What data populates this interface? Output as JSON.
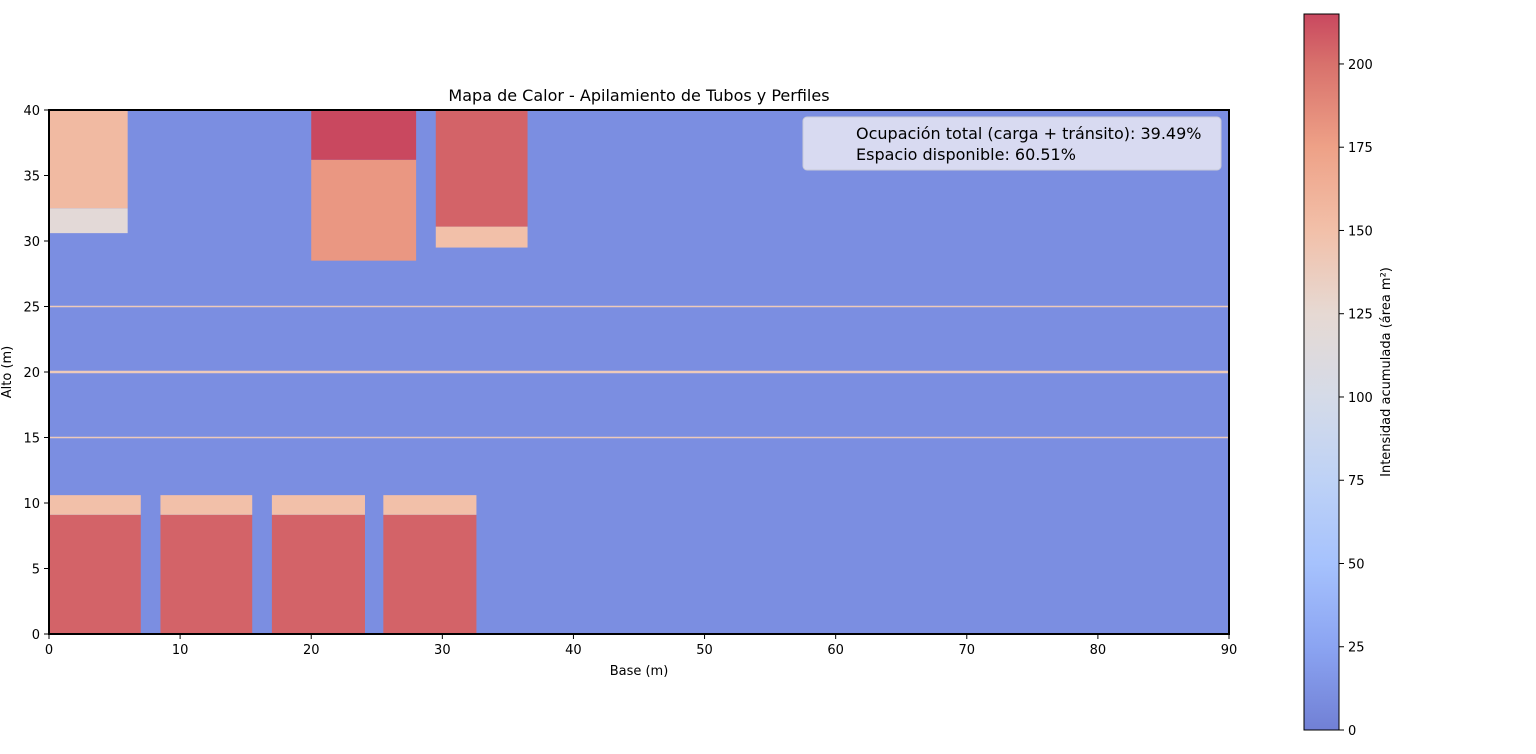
{
  "chart_data": {
    "type": "heatmap",
    "title": "Mapa de Calor - Apilamiento de Tubos y Perfiles",
    "xlabel": "Base (m)",
    "ylabel": "Alto (m)",
    "xlim": [
      0,
      90
    ],
    "ylim": [
      0,
      40
    ],
    "xticks": [
      0,
      10,
      20,
      30,
      40,
      50,
      60,
      70,
      80,
      90
    ],
    "yticks": [
      0,
      5,
      10,
      15,
      20,
      25,
      30,
      35,
      40
    ],
    "grid": false,
    "colormap": "coolwarm",
    "background_value": 10,
    "colorbar": {
      "label": "Intensidad acumulada (área m²)",
      "range": [
        0,
        215
      ],
      "ticks": [
        0,
        25,
        50,
        75,
        100,
        125,
        150,
        175,
        200
      ]
    },
    "cells": [
      {
        "x": [
          0,
          7
        ],
        "y": [
          0,
          9.1
        ],
        "value": 205
      },
      {
        "x": [
          0,
          7
        ],
        "y": [
          9.1,
          10.6
        ],
        "value": 150
      },
      {
        "x": [
          8.5,
          15.5
        ],
        "y": [
          0,
          9.1
        ],
        "value": 205
      },
      {
        "x": [
          8.5,
          15.5
        ],
        "y": [
          9.1,
          10.6
        ],
        "value": 150
      },
      {
        "x": [
          17,
          24.1
        ],
        "y": [
          0,
          9.1
        ],
        "value": 205
      },
      {
        "x": [
          17,
          24.1
        ],
        "y": [
          9.1,
          10.6
        ],
        "value": 150
      },
      {
        "x": [
          25.5,
          32.6
        ],
        "y": [
          0,
          9.1
        ],
        "value": 205
      },
      {
        "x": [
          25.5,
          32.6
        ],
        "y": [
          9.1,
          10.6
        ],
        "value": 150
      },
      {
        "x": [
          0,
          6
        ],
        "y": [
          30.6,
          32.5
        ],
        "value": 120
      },
      {
        "x": [
          0,
          6
        ],
        "y": [
          32.5,
          40
        ],
        "value": 155
      },
      {
        "x": [
          20,
          28
        ],
        "y": [
          28.5,
          36.2
        ],
        "value": 180
      },
      {
        "x": [
          20,
          28
        ],
        "y": [
          36.2,
          40
        ],
        "value": 215
      },
      {
        "x": [
          29.5,
          36.5
        ],
        "y": [
          29.5,
          31.1
        ],
        "value": 150
      },
      {
        "x": [
          29.5,
          36.5
        ],
        "y": [
          31.1,
          40
        ],
        "value": 205
      }
    ],
    "lines": [
      {
        "y": 15,
        "value": 140
      },
      {
        "y": 20,
        "value": 140
      },
      {
        "y": 25,
        "value": 140
      }
    ],
    "legend": {
      "position": "upper right",
      "entries": [
        "Ocupación total (carga + tránsito): 39.49%",
        "Espacio disponible: 60.51%"
      ]
    }
  }
}
